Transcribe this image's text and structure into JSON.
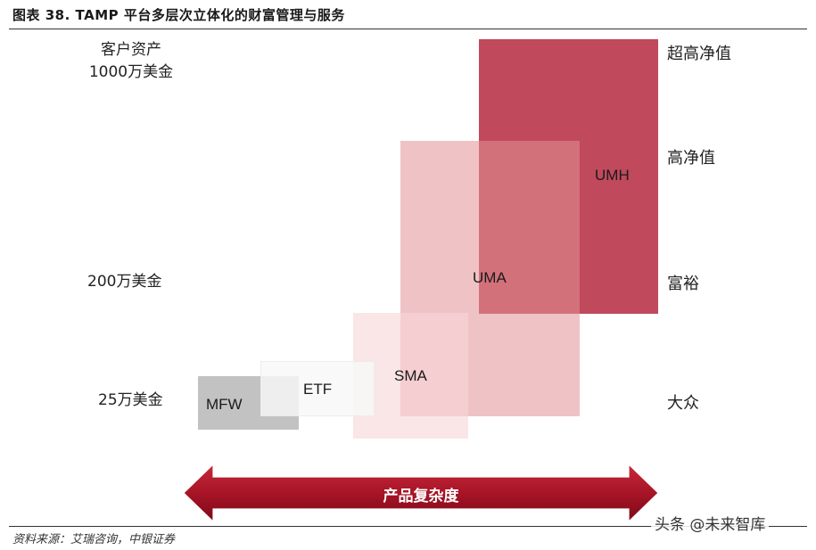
{
  "title": "图表 38. TAMP 平台多层次立体化的财富管理与服务",
  "source": "资料来源：艾瑞咨询，中银证券",
  "watermark": "头条 @未来智库",
  "left_axis": {
    "header": [
      "客户资产",
      "1000万美金"
    ],
    "mid": "200万美金",
    "low": "25万美金"
  },
  "right_axis": {
    "tier1": "超高净值",
    "tier2": "高净值",
    "tier3": "富裕",
    "tier4": "大众"
  },
  "products": {
    "mfw": "MFW",
    "etf": "ETF",
    "sma": "SMA",
    "uma": "UMA",
    "umh": "UMH"
  },
  "arrow": {
    "label": "产品复杂度"
  },
  "colors": {
    "umh": "#c0495c",
    "uma": "#e9a9ae",
    "sma": "#f6d6d7",
    "etf": "#f3f3f3",
    "mfw": "#c2c2c2",
    "arrow": "#a01020"
  }
}
